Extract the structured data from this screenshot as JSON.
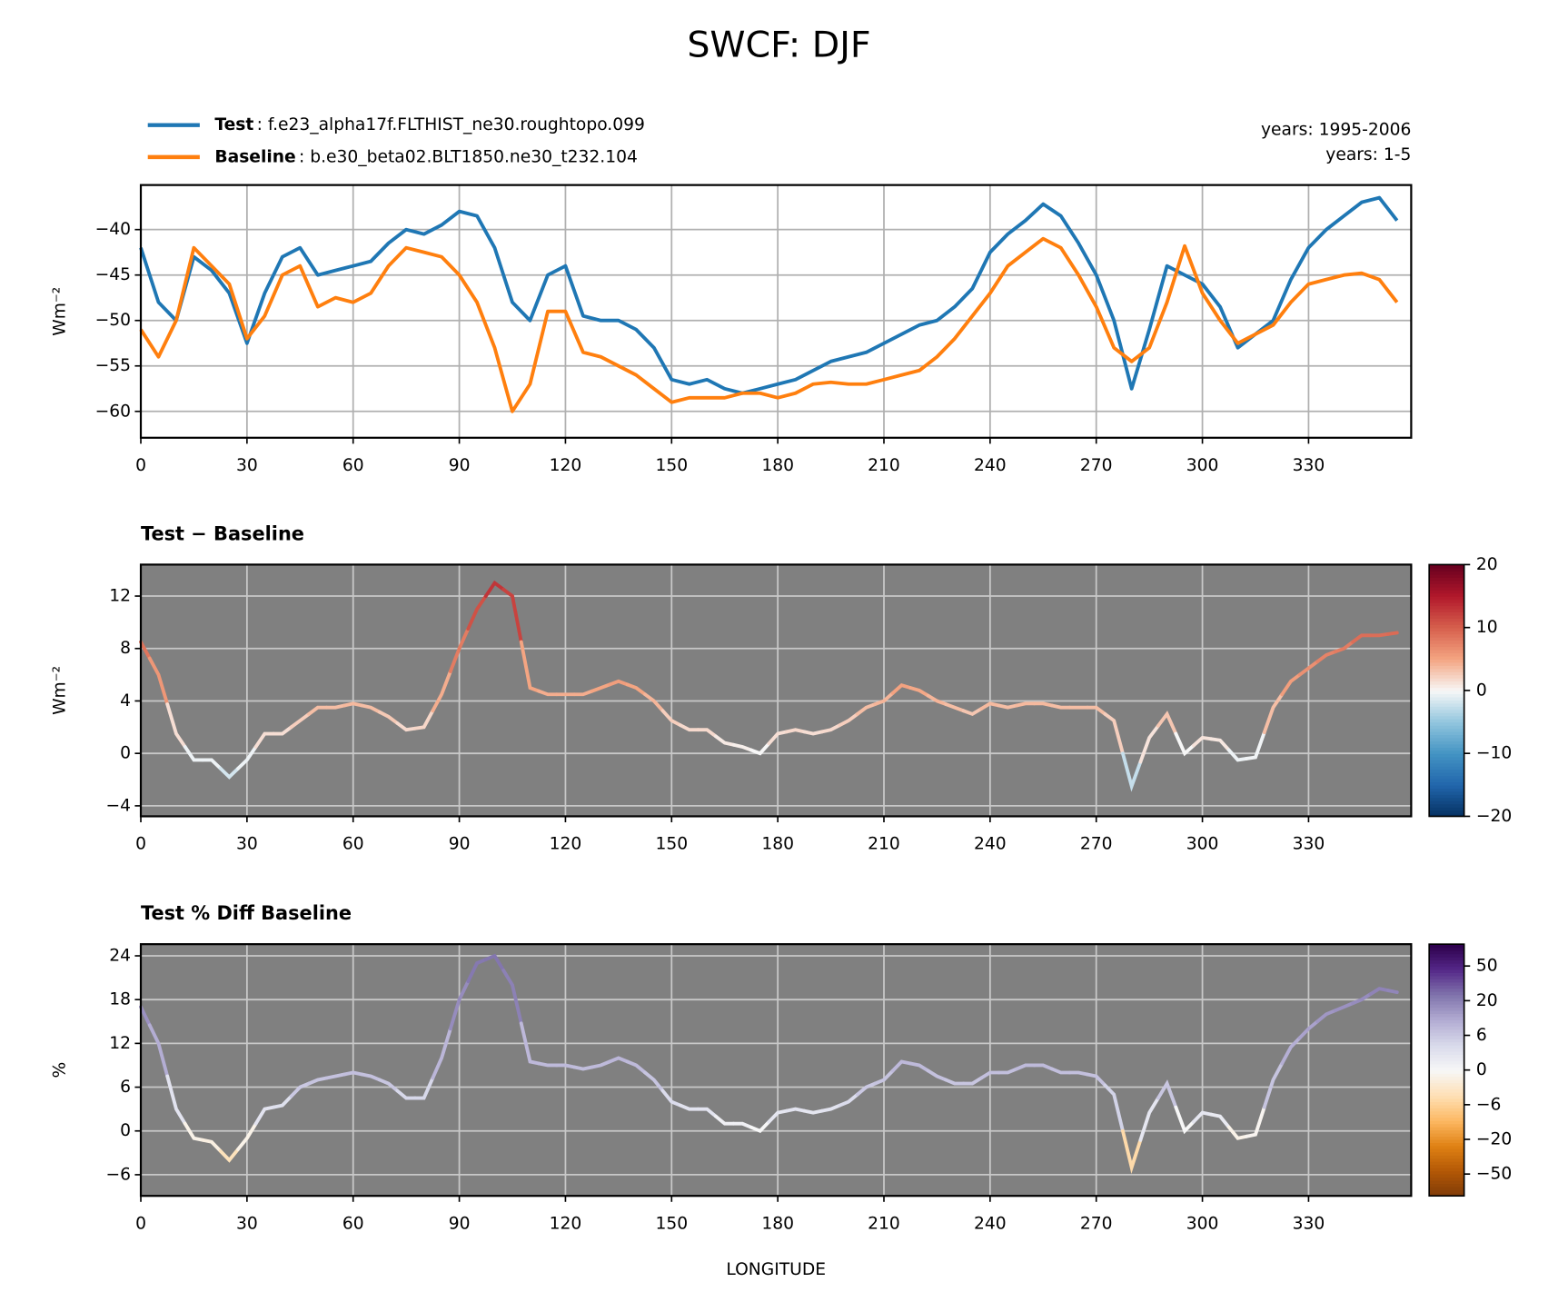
{
  "chart_data": [
    {
      "type": "line",
      "title": "SWCF: DJF",
      "ylabel": "Wm⁻²",
      "x": [
        0,
        5,
        10,
        15,
        20,
        25,
        30,
        35,
        40,
        45,
        50,
        55,
        60,
        65,
        70,
        75,
        80,
        85,
        90,
        95,
        100,
        105,
        110,
        115,
        120,
        125,
        130,
        135,
        140,
        145,
        150,
        155,
        160,
        165,
        170,
        175,
        180,
        185,
        190,
        195,
        200,
        205,
        210,
        215,
        220,
        225,
        230,
        235,
        240,
        245,
        250,
        255,
        260,
        265,
        270,
        275,
        280,
        285,
        290,
        295,
        300,
        305,
        310,
        315,
        320,
        325,
        330,
        335,
        340,
        345,
        350,
        355
      ],
      "series": [
        {
          "name": "Test",
          "case": ": f.e23_alpha17f.FLTHIST_ne30.roughtopo.099",
          "years": "years: 1995-2006",
          "color": "#1f77b4",
          "values": [
            -42,
            -48,
            -50,
            -43,
            -44.5,
            -47,
            -52.5,
            -47,
            -43,
            -42,
            -45,
            -44.5,
            -44,
            -43.5,
            -41.5,
            -40,
            -40.5,
            -39.5,
            -38,
            -38.5,
            -42,
            -48,
            -50,
            -45,
            -44,
            -49.5,
            -50,
            -50,
            -51,
            -53,
            -56.5,
            -57,
            -56.5,
            -57.5,
            -58,
            -57.5,
            -57,
            -56.5,
            -55.5,
            -54.5,
            -54,
            -53.5,
            -52.5,
            -51.5,
            -50.5,
            -50,
            -48.5,
            -46.5,
            -42.5,
            -40.5,
            -39,
            -37.2,
            -38.5,
            -41.5,
            -45,
            -50,
            -57.5,
            -51,
            -44,
            -45,
            -46,
            -48.5,
            -53,
            -51.5,
            -50,
            -45.5,
            -42,
            -40,
            -38.5,
            -37,
            -36.5,
            -39
          ]
        },
        {
          "name": "Baseline",
          "case": ": b.e30_beta02.BLT1850.ne30_t232.104",
          "years": "years: 1-5",
          "color": "#ff7f0e",
          "values": [
            -51,
            -54,
            -50,
            -42,
            -44,
            -46,
            -52,
            -49.5,
            -45,
            -44,
            -48.5,
            -47.5,
            -48,
            -47,
            -44,
            -42,
            -42.5,
            -43,
            -45,
            -48,
            -53,
            -60,
            -57,
            -49,
            -49,
            -53.5,
            -54,
            -55,
            -56,
            -57.5,
            -59,
            -58.5,
            -58.5,
            -58.5,
            -58,
            -58,
            -58.5,
            -58,
            -57,
            -56.8,
            -57,
            -57,
            -56.5,
            -56,
            -55.5,
            -54,
            -52,
            -49.5,
            -47,
            -44,
            -42.5,
            -41,
            -42,
            -45,
            -48.5,
            -53,
            -54.5,
            -53,
            -48,
            -41.8,
            -47,
            -50,
            -52.5,
            -51.5,
            -50.5,
            -48,
            -46,
            -45.5,
            -45,
            -44.8,
            -45.5,
            -48
          ]
        }
      ],
      "xlim": [
        0,
        359
      ],
      "xticks": [
        0,
        30,
        60,
        90,
        120,
        150,
        180,
        210,
        240,
        270,
        300,
        330
      ],
      "ylim": [
        -62.9,
        -35.1
      ],
      "yticks": [
        {
          "value": -60,
          "label": "−60"
        },
        {
          "value": -55,
          "label": "−55"
        },
        {
          "value": -50,
          "label": "−50"
        },
        {
          "value": -45,
          "label": "−45"
        },
        {
          "value": -40,
          "label": "−40"
        }
      ],
      "grid": true,
      "grid_color": "#b0b0b0",
      "legend": "upper left"
    },
    {
      "type": "colored_line",
      "title": "Test − Baseline",
      "ylabel": "Wm⁻²",
      "x": [
        0,
        5,
        10,
        15,
        20,
        25,
        30,
        35,
        40,
        45,
        50,
        55,
        60,
        65,
        70,
        75,
        80,
        85,
        90,
        95,
        100,
        105,
        110,
        115,
        120,
        125,
        130,
        135,
        140,
        145,
        150,
        155,
        160,
        165,
        170,
        175,
        180,
        185,
        190,
        195,
        200,
        205,
        210,
        215,
        220,
        225,
        230,
        235,
        240,
        245,
        250,
        255,
        260,
        265,
        270,
        275,
        280,
        285,
        290,
        295,
        300,
        305,
        310,
        315,
        320,
        325,
        330,
        335,
        340,
        345,
        350,
        355
      ],
      "values": [
        8.5,
        6,
        1.5,
        -0.5,
        -0.5,
        -1.8,
        -0.5,
        1.5,
        1.5,
        2.5,
        3.5,
        3.5,
        3.8,
        3.5,
        2.8,
        1.8,
        2,
        4.5,
        8,
        11,
        13,
        12,
        5,
        4.5,
        4.5,
        4.5,
        5,
        5.5,
        5,
        4,
        2.5,
        1.8,
        1.8,
        0.8,
        0.5,
        0,
        1.5,
        1.8,
        1.5,
        1.8,
        2.5,
        3.5,
        4,
        5.2,
        4.8,
        4,
        3.5,
        3,
        3.8,
        3.5,
        3.8,
        3.8,
        3.5,
        3.5,
        3.5,
        2.5,
        -2.5,
        1.2,
        3,
        0,
        1.2,
        1,
        -0.5,
        -0.3,
        3.5,
        5.5,
        6.5,
        7.5,
        8,
        9,
        9,
        9.2
      ],
      "xlim": [
        0,
        359
      ],
      "xticks": [
        0,
        30,
        60,
        90,
        120,
        150,
        180,
        210,
        240,
        270,
        300,
        330
      ],
      "ylim": [
        -4.8,
        14.4
      ],
      "yticks": [
        {
          "value": -4,
          "label": "−4"
        },
        0,
        4,
        8,
        12
      ],
      "grid": true,
      "grid_color": "#c8c8c8",
      "background": "#808080",
      "colorbar": {
        "scale": "linear",
        "lim": [
          -20,
          20
        ],
        "ticks": [
          {
            "value": -20,
            "label": "−20"
          },
          {
            "value": -10,
            "label": "−10"
          },
          0,
          10,
          20
        ],
        "colors": [
          "#053061",
          "#2166ac",
          "#4393c3",
          "#92c5de",
          "#f7f7f7",
          "#f4a582",
          "#d6604d",
          "#b2182b",
          "#67001f"
        ]
      }
    },
    {
      "type": "colored_line",
      "title": "Test % Diff Baseline",
      "ylabel": "%",
      "xlabel": "LONGITUDE",
      "x": [
        0,
        5,
        10,
        15,
        20,
        25,
        30,
        35,
        40,
        45,
        50,
        55,
        60,
        65,
        70,
        75,
        80,
        85,
        90,
        95,
        100,
        105,
        110,
        115,
        120,
        125,
        130,
        135,
        140,
        145,
        150,
        155,
        160,
        165,
        170,
        175,
        180,
        185,
        190,
        195,
        200,
        205,
        210,
        215,
        220,
        225,
        230,
        235,
        240,
        245,
        250,
        255,
        260,
        265,
        270,
        275,
        280,
        285,
        290,
        295,
        300,
        305,
        310,
        315,
        320,
        325,
        330,
        335,
        340,
        345,
        350,
        355
      ],
      "values": [
        17,
        12,
        3,
        -1,
        -1.5,
        -4,
        -1,
        3,
        3.5,
        6,
        7,
        7.5,
        8,
        7.5,
        6.5,
        4.5,
        4.5,
        10,
        18,
        23,
        24,
        20,
        9.5,
        9,
        9,
        8.5,
        9,
        10,
        9,
        7,
        4,
        3,
        3,
        1,
        1,
        0,
        2.5,
        3,
        2.5,
        3,
        4,
        6,
        7,
        9.5,
        9,
        7.5,
        6.5,
        6.5,
        8,
        8,
        9,
        9,
        8,
        8,
        7.5,
        5,
        -5,
        2.5,
        6.5,
        0,
        2.5,
        2,
        -1,
        -0.5,
        7,
        11.5,
        14,
        16,
        17,
        18,
        19.5,
        19
      ],
      "xlim": [
        0,
        359
      ],
      "xticks": [
        0,
        30,
        60,
        90,
        120,
        150,
        180,
        210,
        240,
        270,
        300,
        330
      ],
      "ylim": [
        -8.9,
        25.6
      ],
      "yticks": [
        {
          "value": -6,
          "label": "−6"
        },
        0,
        6,
        12,
        18,
        24
      ],
      "grid": true,
      "grid_color": "#c8c8c8",
      "background": "#808080",
      "colorbar": {
        "scale": "tick-index",
        "ticks": [
          {
            "value": -50,
            "label": "−50"
          },
          {
            "value": -20,
            "label": "−20"
          },
          {
            "value": -6,
            "label": "−6"
          },
          0,
          6,
          20,
          50
        ],
        "colors": [
          "#7f3b08",
          "#b35806",
          "#e08214",
          "#fdb863",
          "#fee0b6",
          "#f7f7f7",
          "#d8daeb",
          "#b2abd2",
          "#8073ac",
          "#542788",
          "#2d004b"
        ]
      }
    }
  ]
}
